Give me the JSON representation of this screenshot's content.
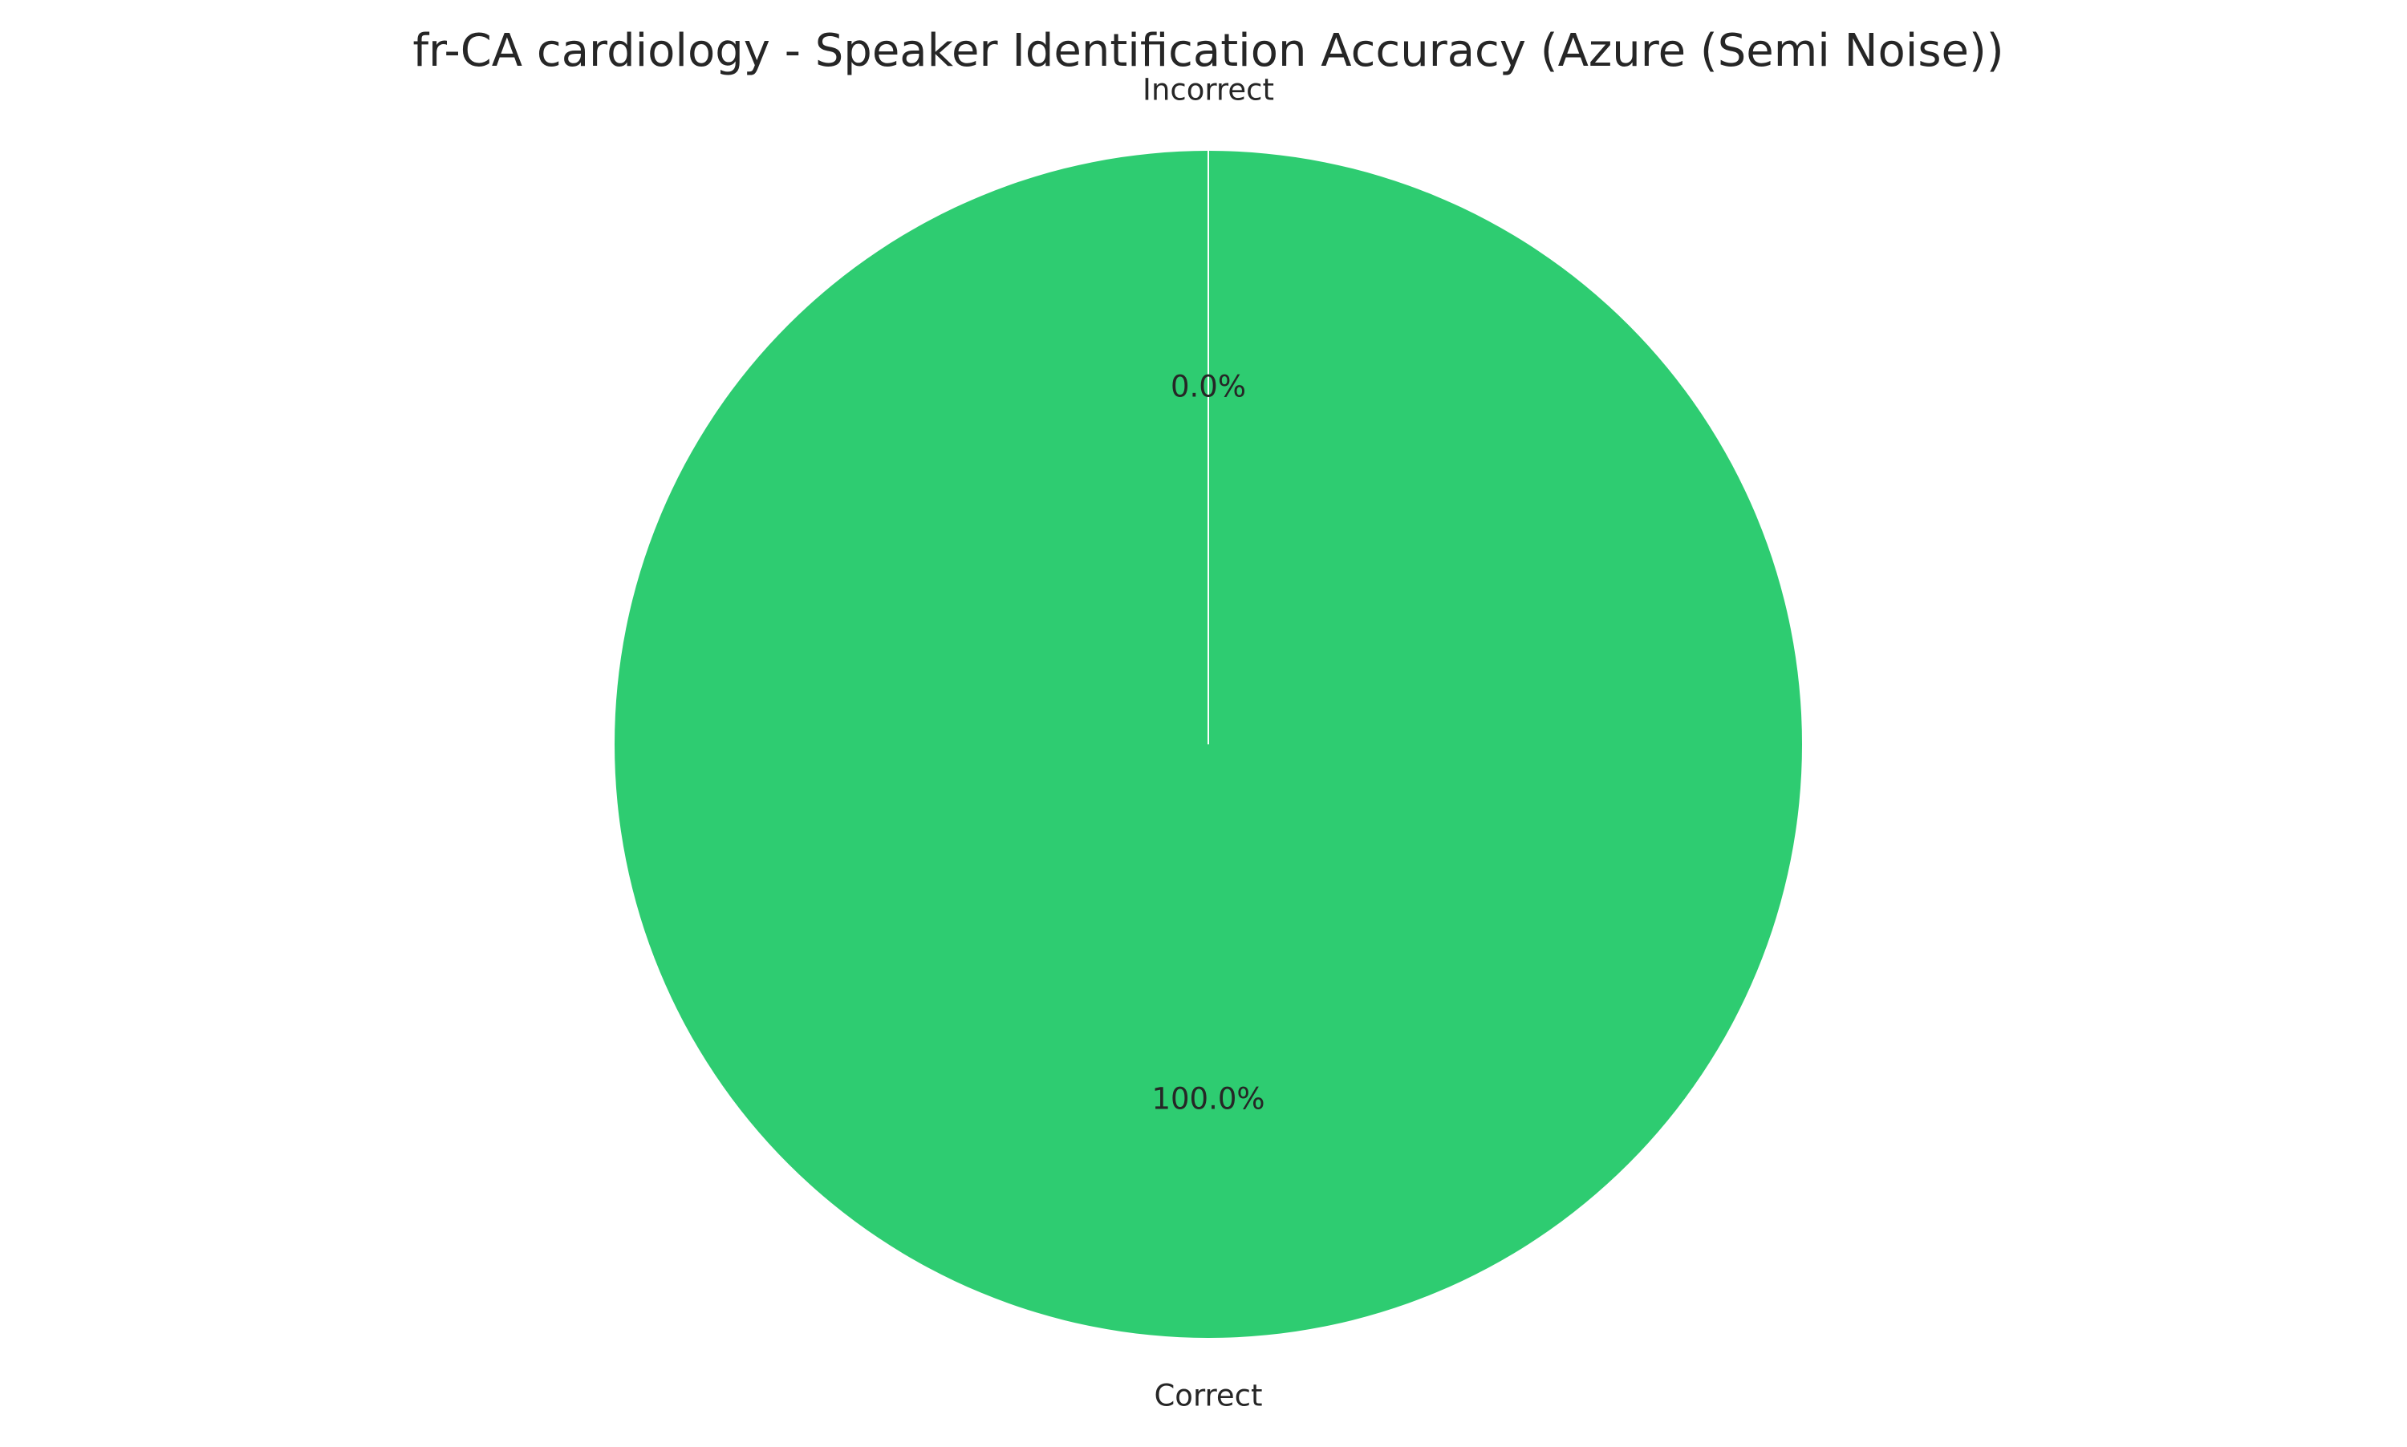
{
  "chart_data": {
    "type": "pie",
    "title": "fr-CA cardiology - Speaker Identification Accuracy (Azure (Semi Noise))",
    "slices": [
      {
        "label": "Incorrect",
        "value": 0.0,
        "percent_label": "0.0%",
        "color": "#e74c3c"
      },
      {
        "label": "Correct",
        "value": 100.0,
        "percent_label": "100.0%",
        "color": "#2ecc71"
      }
    ],
    "start_angle_deg": 90,
    "direction": "counterclockwise",
    "slice_edge_color": "#ffffff"
  }
}
